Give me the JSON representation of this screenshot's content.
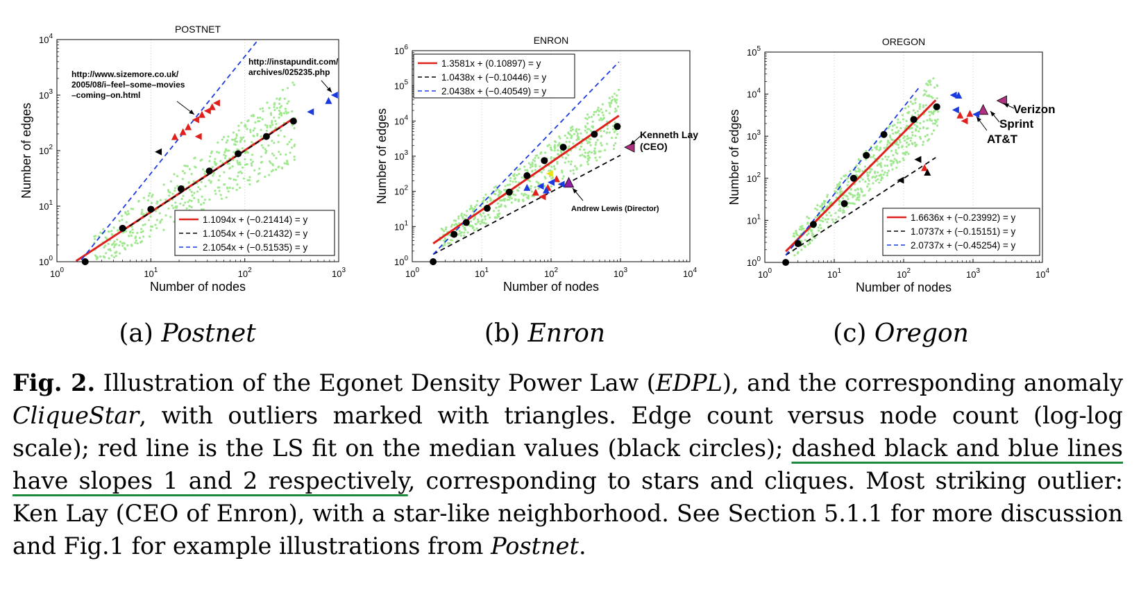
{
  "chart_data": [
    {
      "type": "scatter",
      "title": "POSTNET",
      "xlabel": "Number of nodes",
      "ylabel": "Number of edges",
      "xscale": "log",
      "yscale": "log",
      "xlim": [
        1,
        1000
      ],
      "ylim": [
        1,
        10000
      ],
      "xticks": [
        "10^0",
        "10^1",
        "10^2",
        "10^3"
      ],
      "yticks": [
        "10^0",
        "10^1",
        "10^2",
        "10^3",
        "10^4"
      ],
      "grid": "x-dotted",
      "legend_position": "bottom-right",
      "legend": [
        "1.1094x + (−0.21414) = y",
        "1.1054x + (−0.21432) = y",
        "2.1054x + (−0.51535) = y"
      ],
      "fit_lines": [
        {
          "color": "#e0201c",
          "dash": false,
          "slope": 1.1094,
          "intercept": -0.21414,
          "x_range": [
            1.6,
            330
          ]
        },
        {
          "color": "#000000",
          "dash": true,
          "slope": 1.1054,
          "intercept": -0.21432,
          "x_range": [
            5,
            330
          ]
        },
        {
          "color": "#1a3ae0",
          "dash": true,
          "slope": 2.1054,
          "intercept": -0.51535,
          "x_range": [
            1.6,
            150
          ]
        }
      ],
      "medians": [
        [
          2,
          1
        ],
        [
          5,
          4
        ],
        [
          10,
          8.8
        ],
        [
          21,
          20.5
        ],
        [
          42,
          43
        ],
        [
          85,
          88
        ],
        [
          170,
          180
        ],
        [
          330,
          340
        ]
      ],
      "outliers": [
        {
          "x": 500,
          "y": 500,
          "color": "#1a3ae0"
        },
        {
          "x": 780,
          "y": 800,
          "color": "#1a3ae0"
        },
        {
          "x": 900,
          "y": 1000,
          "color": "#1a3ae0"
        },
        {
          "x": 25,
          "y": 270,
          "color": "#e0201c"
        },
        {
          "x": 30,
          "y": 360,
          "color": "#e0201c"
        },
        {
          "x": 35,
          "y": 450,
          "color": "#e0201c"
        },
        {
          "x": 40,
          "y": 520,
          "color": "#e0201c"
        },
        {
          "x": 45,
          "y": 620,
          "color": "#e0201c"
        },
        {
          "x": 50,
          "y": 720,
          "color": "#e0201c"
        },
        {
          "x": 22,
          "y": 220,
          "color": "#e0201c"
        },
        {
          "x": 32,
          "y": 180,
          "color": "#e0201c"
        },
        {
          "x": 18,
          "y": 180,
          "color": "#e0201c"
        },
        {
          "x": 12,
          "y": 95,
          "color": "#000000"
        }
      ],
      "annotations": [
        {
          "text": [
            "http://www.sizemore.co.uk/",
            "2005/08/i–feel–some–movies",
            "–coming–on.html"
          ],
          "target": [
            30,
            330
          ]
        },
        {
          "text": [
            "http://instapundit.com/",
            "archives/025235.php"
          ],
          "target": [
            880,
            950
          ]
        }
      ]
    },
    {
      "type": "scatter",
      "title": "ENRON",
      "xlabel": "Number of nodes",
      "ylabel": "Number of edges",
      "xscale": "log",
      "yscale": "log",
      "xlim": [
        1,
        10000
      ],
      "ylim": [
        1,
        1000000
      ],
      "xticks": [
        "10^0",
        "10^1",
        "10^2",
        "10^3",
        "10^4"
      ],
      "yticks": [
        "10^0",
        "10^1",
        "10^2",
        "10^3",
        "10^4",
        "10^5",
        "10^6"
      ],
      "grid": "x-dotted",
      "legend_position": "top-left",
      "legend": [
        "1.3581x + (0.10897) = y",
        "1.0438x + (−0.10446) = y",
        "2.0438x + (−0.40549) = y"
      ],
      "fit_lines": [
        {
          "color": "#e0201c",
          "dash": false,
          "slope": 1.3581,
          "intercept": 0.10897,
          "x_range": [
            2,
            950
          ]
        },
        {
          "color": "#000000",
          "dash": true,
          "slope": 1.0438,
          "intercept": -0.10446,
          "x_range": [
            2,
            1000
          ]
        },
        {
          "color": "#1a3ae0",
          "dash": true,
          "slope": 2.0438,
          "intercept": -0.40549,
          "x_range": [
            2,
            950
          ]
        }
      ],
      "medians": [
        [
          2,
          1
        ],
        [
          4,
          6
        ],
        [
          6,
          13
        ],
        [
          12,
          33
        ],
        [
          25,
          95
        ],
        [
          45,
          280
        ],
        [
          80,
          750
        ],
        [
          150,
          1800
        ],
        [
          420,
          4200
        ],
        [
          900,
          7000
        ]
      ],
      "outliers": [
        {
          "x": 1350,
          "y": 1800,
          "color": "#b03080"
        },
        {
          "x": 180,
          "y": 180,
          "color": "#9020a0"
        },
        {
          "x": 140,
          "y": 160,
          "color": "#1a3ae0"
        },
        {
          "x": 120,
          "y": 230,
          "color": "#e0201c"
        },
        {
          "x": 100,
          "y": 180,
          "color": "#1a3ae0"
        },
        {
          "x": 90,
          "y": 130,
          "color": "#e0201c"
        },
        {
          "x": 75,
          "y": 70,
          "color": "#e0201c"
        },
        {
          "x": 60,
          "y": 95,
          "color": "#e0201c"
        },
        {
          "x": 95,
          "y": 320,
          "color": "#e8e010"
        },
        {
          "x": 45,
          "y": 130,
          "color": "#1a3ae0"
        },
        {
          "x": 70,
          "y": 140,
          "color": "#1a3ae0"
        },
        {
          "x": 85,
          "y": 110,
          "color": "#1a3ae0"
        }
      ],
      "annotations": [
        {
          "text": [
            "Kenneth Lay",
            "(CEO)"
          ],
          "target": [
            1350,
            1800
          ]
        },
        {
          "text": [
            "Andrew Lewis (Director)"
          ],
          "target": [
            180,
            180
          ]
        }
      ]
    },
    {
      "type": "scatter",
      "title": "OREGON",
      "xlabel": "Number of nodes",
      "ylabel": "Number of edges",
      "xscale": "log",
      "yscale": "log",
      "xlim": [
        1,
        10000
      ],
      "ylim": [
        1,
        100000
      ],
      "xticks": [
        "10^0",
        "10^1",
        "10^2",
        "10^3",
        "10^4"
      ],
      "yticks": [
        "10^0",
        "10^1",
        "10^2",
        "10^3",
        "10^4",
        "10^5"
      ],
      "grid": "x-dotted",
      "legend_position": "bottom-right",
      "legend": [
        "1.6636x + (−0.23992) = y",
        "1.0737x + (−0.15151) = y",
        "2.0737x + (−0.45254) = y"
      ],
      "fit_lines": [
        {
          "color": "#e0201c",
          "dash": false,
          "slope": 1.6636,
          "intercept": -0.23992,
          "x_range": [
            2,
            290
          ]
        },
        {
          "color": "#000000",
          "dash": true,
          "slope": 1.0737,
          "intercept": -0.15151,
          "x_range": [
            2,
            290
          ]
        },
        {
          "color": "#1a3ae0",
          "dash": true,
          "slope": 2.0737,
          "intercept": -0.45254,
          "x_range": [
            2,
            170
          ]
        }
      ],
      "medians": [
        [
          2,
          1
        ],
        [
          3,
          2.8
        ],
        [
          5,
          8
        ],
        [
          14,
          25
        ],
        [
          19,
          100
        ],
        [
          29,
          350
        ],
        [
          52,
          1100
        ],
        [
          140,
          2500
        ],
        [
          300,
          5000
        ]
      ],
      "outliers": [
        {
          "x": 2600,
          "y": 7000,
          "color": "#b03080"
        },
        {
          "x": 1400,
          "y": 4300,
          "color": "#b03080"
        },
        {
          "x": 1100,
          "y": 3300,
          "color": "#1a3ae0"
        },
        {
          "x": 900,
          "y": 3500,
          "color": "#e0201c"
        },
        {
          "x": 520,
          "y": 9500,
          "color": "#1a3ae0"
        },
        {
          "x": 620,
          "y": 9500,
          "color": "#1a3ae0"
        },
        {
          "x": 560,
          "y": 4200,
          "color": "#1a3ae0"
        },
        {
          "x": 650,
          "y": 3200,
          "color": "#e0201c"
        },
        {
          "x": 750,
          "y": 2300,
          "color": "#e0201c"
        },
        {
          "x": 200,
          "y": 180,
          "color": "#e0201c"
        },
        {
          "x": 160,
          "y": 280,
          "color": "#000000"
        },
        {
          "x": 220,
          "y": 140,
          "color": "#000000"
        },
        {
          "x": 90,
          "y": 90,
          "color": "#000000"
        }
      ],
      "annotations": [
        {
          "text": [
            "Verizon"
          ],
          "target": [
            2600,
            7000
          ]
        },
        {
          "text": [
            "Sprint"
          ],
          "target": [
            1400,
            4300
          ]
        },
        {
          "text": [
            "AT&T"
          ],
          "target": [
            1100,
            3300
          ]
        }
      ]
    }
  ],
  "panels": [
    {
      "letter": "(a)",
      "name": "Postnet"
    },
    {
      "letter": "(b)",
      "name": "Enron"
    },
    {
      "letter": "(c)",
      "name": "Oregon"
    }
  ],
  "caption": {
    "label": "Fig. 2.",
    "t1": " Illustration of the Egonet Density Power Law (",
    "t2": "EDPL",
    "t3": "), and the corresponding anomaly ",
    "t4": "CliqueStar",
    "t5": ", with outliers marked with triangles. Edge count versus node count (log-log scale); red line is the LS fit on the median values (black circles); ",
    "t6": "dashed black and blue lines have slopes 1 and 2 respectively",
    "t7": ", corresponding to stars and cliques. Most striking outlier: Ken Lay (CEO of Enron), with a star-like neighborhood. See Section 5.1.1 for more discussion and Fig.1 for example illustrations from ",
    "t8": "Postnet",
    "t9": "."
  }
}
